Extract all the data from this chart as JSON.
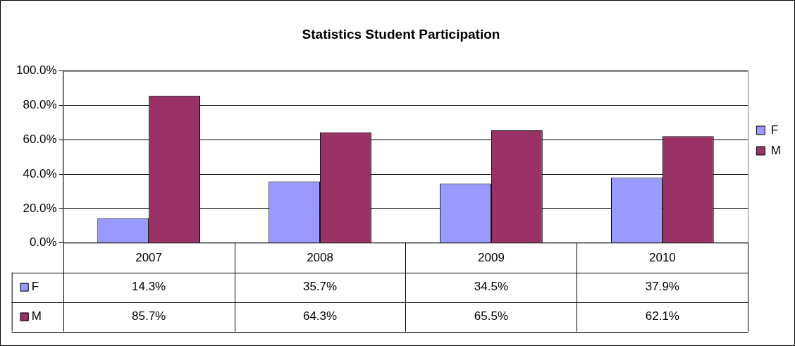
{
  "chart_data": {
    "type": "bar",
    "title": "Statistics Student Participation",
    "categories": [
      "2007",
      "2008",
      "2009",
      "2010"
    ],
    "series": [
      {
        "name": "F",
        "color": "#9999ff",
        "values": [
          14.3,
          35.7,
          34.5,
          37.9
        ],
        "value_labels": [
          "14.3%",
          "35.7%",
          "34.5%",
          "37.9%"
        ]
      },
      {
        "name": "M",
        "color": "#993366",
        "values": [
          85.7,
          64.3,
          65.5,
          62.1
        ],
        "value_labels": [
          "85.7%",
          "64.3%",
          "65.5%",
          "62.1%"
        ]
      }
    ],
    "ylim": [
      0,
      100
    ],
    "yticks": [
      {
        "value": 0,
        "label": "0.0%"
      },
      {
        "value": 20,
        "label": "20.0%"
      },
      {
        "value": 40,
        "label": "40.0%"
      },
      {
        "value": 60,
        "label": "60.0%"
      },
      {
        "value": 80,
        "label": "80.0%"
      },
      {
        "value": 100,
        "label": "100.0%"
      }
    ],
    "grid": "y",
    "legend": "right"
  }
}
